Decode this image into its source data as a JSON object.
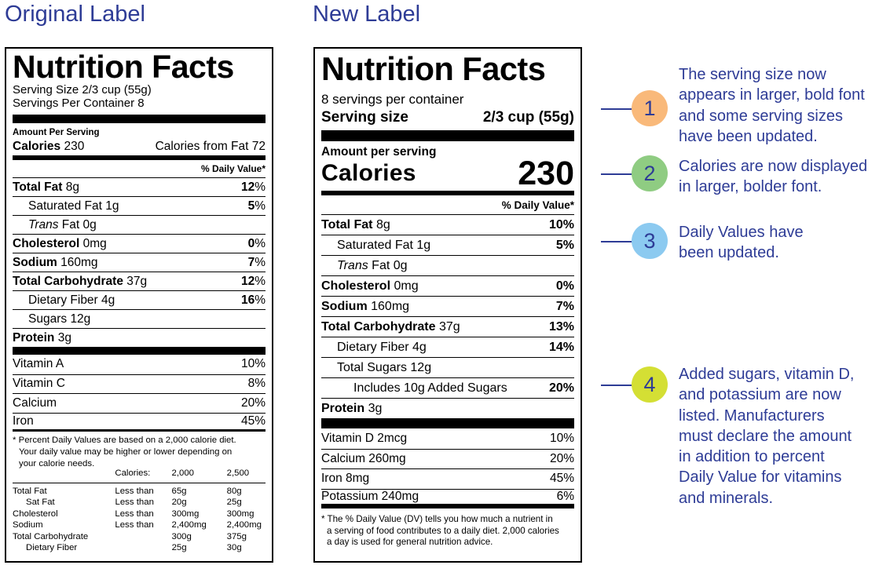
{
  "headings": {
    "original": "Original Label",
    "new": "New Label"
  },
  "original": {
    "title": "Nutrition Facts",
    "serving_size": "Serving Size 2/3 cup (55g)",
    "servings_per_container": "Servings Per Container 8",
    "amount_per_serving": "Amount Per Serving",
    "calories_label": "Calories",
    "calories_value": "230",
    "calories_from_fat": "Calories from Fat 72",
    "dv_header": "% Daily Value*",
    "nutrients": [
      {
        "name": "Total Fat",
        "amount": "8g",
        "dv_num": "12",
        "dv_pct": "%"
      },
      {
        "name": "Saturated Fat",
        "amount": "1g",
        "dv_num": "5",
        "dv_pct": "%"
      },
      {
        "name": "Trans",
        "name_rest": "Fat",
        "amount": "0g"
      },
      {
        "name": "Cholesterol",
        "amount": "0mg",
        "dv_num": "0",
        "dv_pct": "%"
      },
      {
        "name": "Sodium",
        "amount": "160mg",
        "dv_num": "7",
        "dv_pct": "%"
      },
      {
        "name": "Total Carbohydrate",
        "amount": "37g",
        "dv_num": "12",
        "dv_pct": "%"
      },
      {
        "name": "Dietary Fiber",
        "amount": "4g",
        "dv_num": "16",
        "dv_pct": "%"
      },
      {
        "name": "Sugars",
        "amount": "12g"
      },
      {
        "name": "Protein",
        "amount": "3g"
      }
    ],
    "vitamins": [
      {
        "name": "Vitamin A",
        "dv": "10%"
      },
      {
        "name": "Vitamin C",
        "dv": "8%"
      },
      {
        "name": "Calcium",
        "dv": "20%"
      },
      {
        "name": "Iron",
        "dv": "45%"
      }
    ],
    "footnote": {
      "line1": "* Percent Daily Values are based on a 2,000 calorie diet.",
      "line2": "Your daily value may be higher or lower depending on",
      "line3": "your calorie needs."
    },
    "table": {
      "header": {
        "label": "Calories:",
        "col1": "2,000",
        "col2": "2,500"
      },
      "rows": [
        {
          "name": "Total Fat",
          "limit": "Less than",
          "v1": "65g",
          "v2": "80g"
        },
        {
          "name": "Sat Fat",
          "limit": "Less than",
          "v1": "20g",
          "v2": "25g"
        },
        {
          "name": "Cholesterol",
          "limit": "Less than",
          "v1": "300mg",
          "v2": "300mg"
        },
        {
          "name": "Sodium",
          "limit": "Less than",
          "v1": "2,400mg",
          "v2": "2,400mg"
        },
        {
          "name": "Total Carbohydrate",
          "limit": "",
          "v1": "300g",
          "v2": "375g"
        },
        {
          "name": "Dietary Fiber",
          "limit": "",
          "v1": "25g",
          "v2": "30g"
        }
      ]
    }
  },
  "new": {
    "title": "Nutrition Facts",
    "servings_per_container": "8 servings per container",
    "serving_size_label": "Serving size",
    "serving_size_value": "2/3 cup (55g)",
    "amount_per_serving": "Amount per serving",
    "calories_label": "Calories",
    "calories_value": "230",
    "dv_header": "% Daily Value*",
    "nutrients": [
      {
        "name": "Total Fat",
        "amount": "8g",
        "dv": "10%"
      },
      {
        "name": "Saturated Fat",
        "amount": "1g",
        "dv": "5%"
      },
      {
        "name": "Trans",
        "name_rest": "Fat",
        "amount": "0g"
      },
      {
        "name": "Cholesterol",
        "amount": "0mg",
        "dv": "0%"
      },
      {
        "name": "Sodium",
        "amount": "160mg",
        "dv": "7%"
      },
      {
        "name": "Total Carbohydrate",
        "amount": "37g",
        "dv": "13%"
      },
      {
        "name": "Dietary Fiber",
        "amount": "4g",
        "dv": "14%"
      },
      {
        "name": "Total Sugars",
        "amount": "12g"
      },
      {
        "name": "Includes 10g Added Sugars",
        "dv": "20%"
      },
      {
        "name": "Protein",
        "amount": "3g"
      }
    ],
    "vitamins": [
      {
        "name": "Vitamin D 2mcg",
        "dv": "10%"
      },
      {
        "name": "Calcium 260mg",
        "dv": "20%"
      },
      {
        "name": "Iron 8mg",
        "dv": "45%"
      },
      {
        "name": "Potassium 240mg",
        "dv": "6%"
      }
    ],
    "footnote": {
      "line1": "* The % Daily Value (DV) tells you how much a nutrient in",
      "line2": "a serving of food contributes to a daily diet. 2,000 calories",
      "line3": "a day is used for general nutrition advice."
    }
  },
  "callouts": [
    {
      "number": "1",
      "color": "#f9b97a",
      "lines": [
        "The serving size now",
        "appears in larger, bold font",
        "and some serving sizes",
        "have been updated."
      ]
    },
    {
      "number": "2",
      "color": "#8fcc82",
      "lines": [
        "Calories are now displayed",
        "in larger, bolder font."
      ]
    },
    {
      "number": "3",
      "color": "#8ccaf0",
      "lines": [
        "Daily Values have",
        "been updated."
      ]
    },
    {
      "number": "4",
      "color": "#d4df34",
      "lines": [
        "Added sugars, vitamin D,",
        "and potassium are now",
        "listed. Manufacturers",
        "must declare the amount",
        "in addition to percent",
        "Daily Value for vitamins",
        "and minerals."
      ]
    }
  ],
  "colors": {
    "accent": "#2e3c96"
  }
}
